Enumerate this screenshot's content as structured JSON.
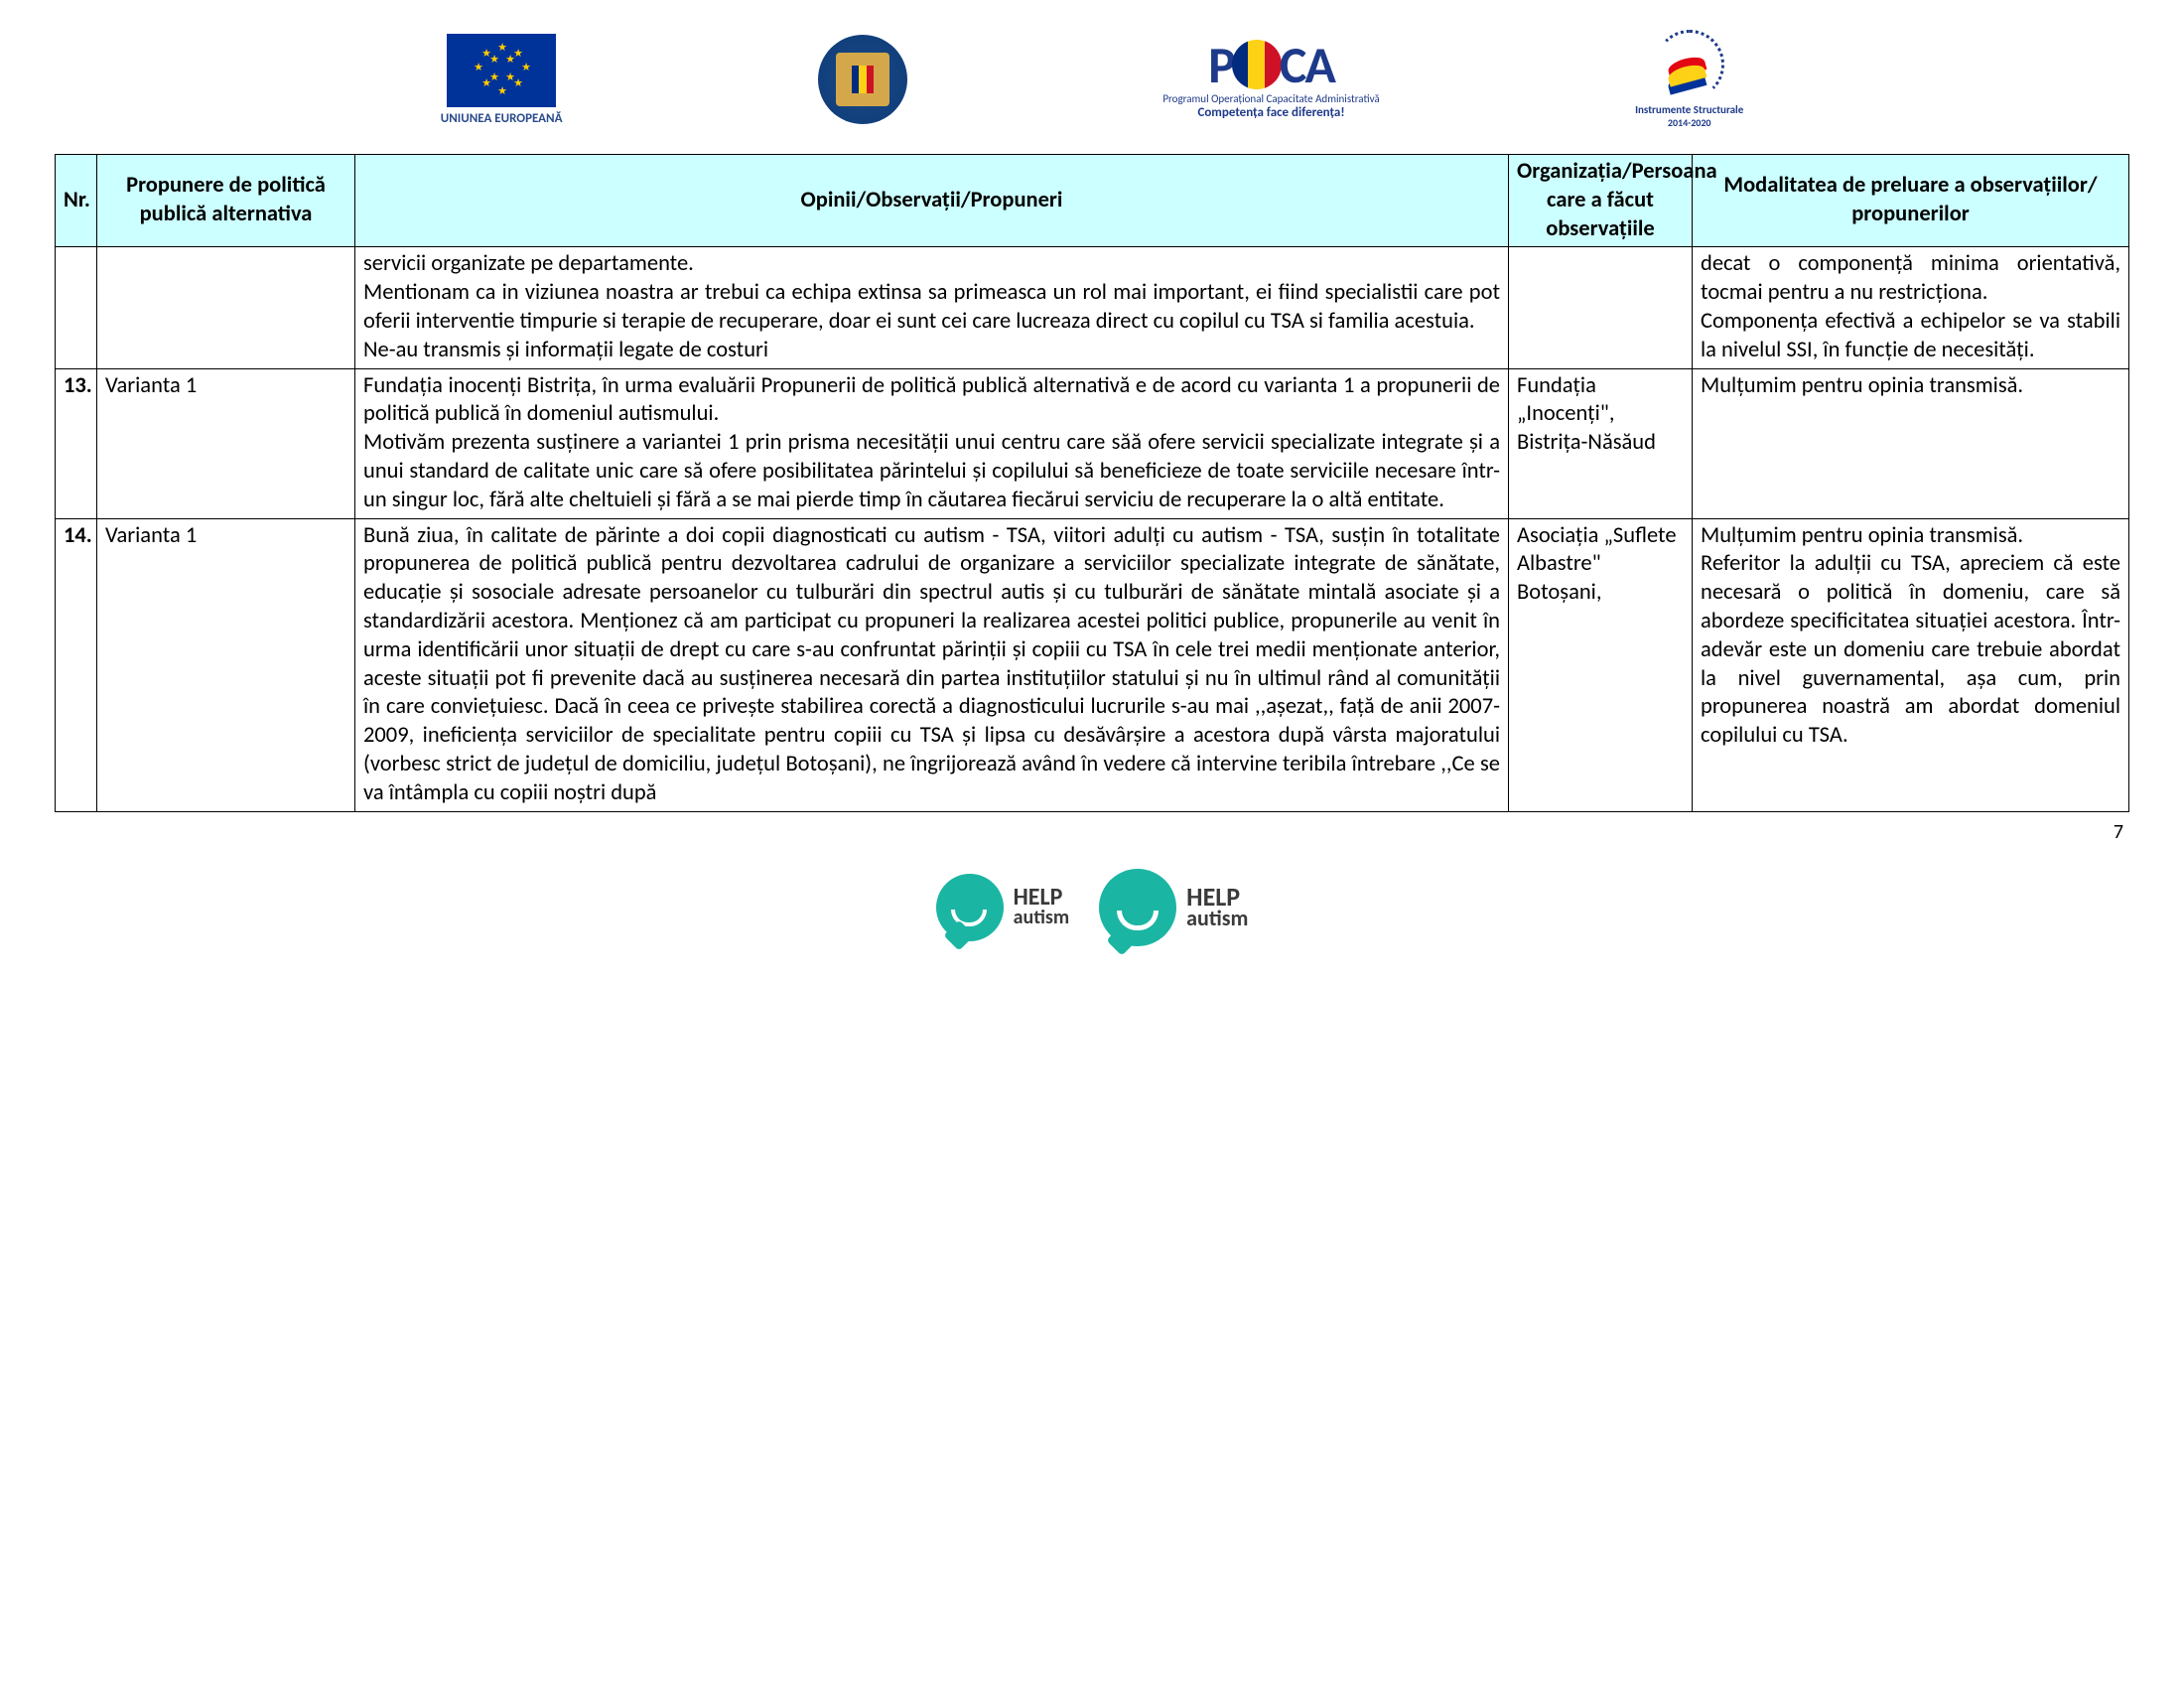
{
  "logos": {
    "eu_caption": "UNIUNEA EUROPEANĂ",
    "poca_text": "P CA",
    "poca_sub1": "Programul Operațional Capacitate Administrativă",
    "poca_sub2": "Competența face diferența!",
    "instr_cap": "Instrumente Structurale",
    "instr_years": "2014-2020"
  },
  "headers": {
    "nr": "Nr.",
    "propunere": "Propunere de politică publică alternativa",
    "opinii": "Opinii/Observații/Propuneri",
    "org": "Organizația/Persoana care a făcut observațiile",
    "mod": "Modalitatea de preluare a observațiilor/ propunerilor"
  },
  "rows": [
    {
      "nr": "",
      "propunere": "",
      "opinii": "servicii organizate pe departamente.\nMentionam ca in viziunea noastra ar trebui ca echipa extinsa sa primeasca un rol mai important, ei fiind specialistii care pot oferii interventie timpurie si terapie de recuperare, doar ei sunt cei care lucreaza direct cu copilul cu TSA si familia acestuia.\nNe-au transmis și informații legate de costuri",
      "org": "",
      "mod": "decat o componență minima orientativă, tocmai pentru a nu restricționa.\nComponența efectivă a echipelor se va stabili la nivelul SSI, în funcție de necesități."
    },
    {
      "nr": "13.",
      "propunere": "Varianta 1",
      "opinii": "Fundația inocenți Bistrița, în urma evaluării Propunerii de politică publică alternativă e de acord cu varianta 1 a propunerii de politică publică în domeniul autismului.\nMotivăm prezenta susținere a variantei 1 prin prisma necesității unui centru care săă ofere servicii specializate integrate și a unui standard de calitate unic care să ofere posibilitatea părintelui și copilului să beneficieze de toate serviciile necesare într-un singur loc, fără alte cheltuieli și fără a se mai pierde timp în căutarea fiecărui serviciu de recuperare la o altă entitate.",
      "org": "Fundația „Inocenți\", Bistrița-Năsăud",
      "mod": "Mulțumim pentru opinia transmisă."
    },
    {
      "nr": "14.",
      "propunere": "Varianta 1",
      "opinii": "Bună ziua, în calitate de părinte a doi copii diagnosticati cu autism - TSA, viitori adulți cu autism - TSA, susțin în totalitate propunerea de politică publică pentru dezvoltarea cadrului de organizare a serviciilor specializate integrate de sănătate, educație și  sosociale adresate persoanelor cu tulburări din spectrul autis și cu tulburări de sănătate mintală asociate și a standardizării acestora. Menționez că am participat cu propuneri la realizarea acestei politici publice, propunerile au venit în urma identificării unor situații de drept cu care s-au confruntat părinții și copiii cu TSA în cele trei medii menționate anterior, aceste situații pot fi prevenite dacă au susținerea necesară din partea instituțiilor statului și nu în ultimul rând al comunității în care conviețuiesc. Dacă în ceea ce privește stabilirea corectă a diagnosticului lucrurile s-au mai ,,așezat,, față de anii 2007-2009, ineficiența serviciilor de specialitate pentru copiii cu TSA și lipsa cu desăvârșire a acestora după vârsta majoratului (vorbesc strict de județul de domiciliu, județul Botoșani), ne îngrijorează având în vedere că intervine teribila întrebare ,,Ce se va întâmpla cu copiii noștri după",
      "org": "Asociația „Suflete Albastre\" Botoșani,",
      "mod": "Mulțumim pentru opinia transmisă.\nReferitor la adulții cu TSA, apreciem că este necesară o politică în domeniu, care să abordeze specificitatea situației acestora. Într-adevăr este un domeniu care trebuie abordat la nivel guvernamental, așa cum, prin propunerea noastră am abordat domeniul copilului cu TSA."
    }
  ],
  "page_number": "7",
  "footer": {
    "help1": "HELP",
    "help2": "autism"
  }
}
